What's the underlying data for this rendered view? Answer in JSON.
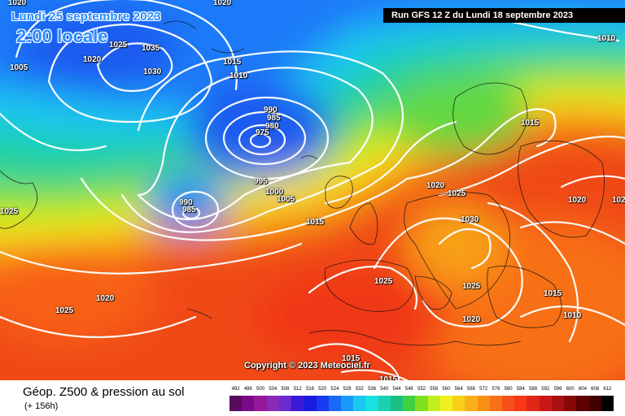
{
  "header": {
    "date": "Lundi 25 septembre 2023",
    "time": "2:00 locale",
    "run": "Run GFS 12 Z du Lundi 18 septembre 2023"
  },
  "copyright": "Copyright © 2023 Meteociel.fr",
  "footer": {
    "title": "Géop. Z500 & pression au sol",
    "subtitle": "(+ 156h)"
  },
  "pressure_labels": [
    {
      "text": "1020"
    },
    {
      "text": "1020"
    },
    {
      "text": "1005"
    },
    {
      "text": "1025"
    },
    {
      "text": "1035"
    },
    {
      "text": "1020"
    },
    {
      "text": "1030"
    },
    {
      "text": "1015"
    },
    {
      "text": "1010"
    },
    {
      "text": "990"
    },
    {
      "text": "985"
    },
    {
      "text": "980"
    },
    {
      "text": "975"
    },
    {
      "text": "995"
    },
    {
      "text": "1000"
    },
    {
      "text": "1005"
    },
    {
      "text": "990"
    },
    {
      "text": "985"
    },
    {
      "text": "1015"
    },
    {
      "text": "1010"
    },
    {
      "text": "1015"
    },
    {
      "text": "1020"
    },
    {
      "text": "1025"
    },
    {
      "text": "1030"
    },
    {
      "text": "1020"
    },
    {
      "text": "1020"
    },
    {
      "text": "1025"
    },
    {
      "text": "1025"
    },
    {
      "text": "1025"
    },
    {
      "text": "1015"
    },
    {
      "text": "1010"
    },
    {
      "text": "1020"
    },
    {
      "text": "1020"
    },
    {
      "text": "1025"
    },
    {
      "text": "1015"
    },
    {
      "text": "1015"
    }
  ],
  "legend": {
    "ticks": [
      "492",
      "496",
      "500",
      "504",
      "508",
      "512",
      "516",
      "520",
      "524",
      "528",
      "532",
      "536",
      "540",
      "544",
      "548",
      "552",
      "556",
      "560",
      "564",
      "568",
      "572",
      "576",
      "580",
      "584",
      "588",
      "592",
      "596",
      "600",
      "604",
      "608",
      "612"
    ],
    "colors": [
      "#5a0a5a",
      "#7a0a8a",
      "#96189a",
      "#8a2ab8",
      "#6a2ad0",
      "#3a1ad8",
      "#1a1ae0",
      "#1a3af0",
      "#1a6af8",
      "#1a9af8",
      "#1ac8f0",
      "#1ae0e0",
      "#1ad0b0",
      "#1ac080",
      "#40d040",
      "#80e020",
      "#c0f020",
      "#f0f020",
      "#f8d018",
      "#f8b018",
      "#f89018",
      "#f87018",
      "#f85018",
      "#f83818",
      "#e02818",
      "#c81818",
      "#a81010",
      "#880808",
      "#600000",
      "#400000",
      "#000000"
    ]
  }
}
